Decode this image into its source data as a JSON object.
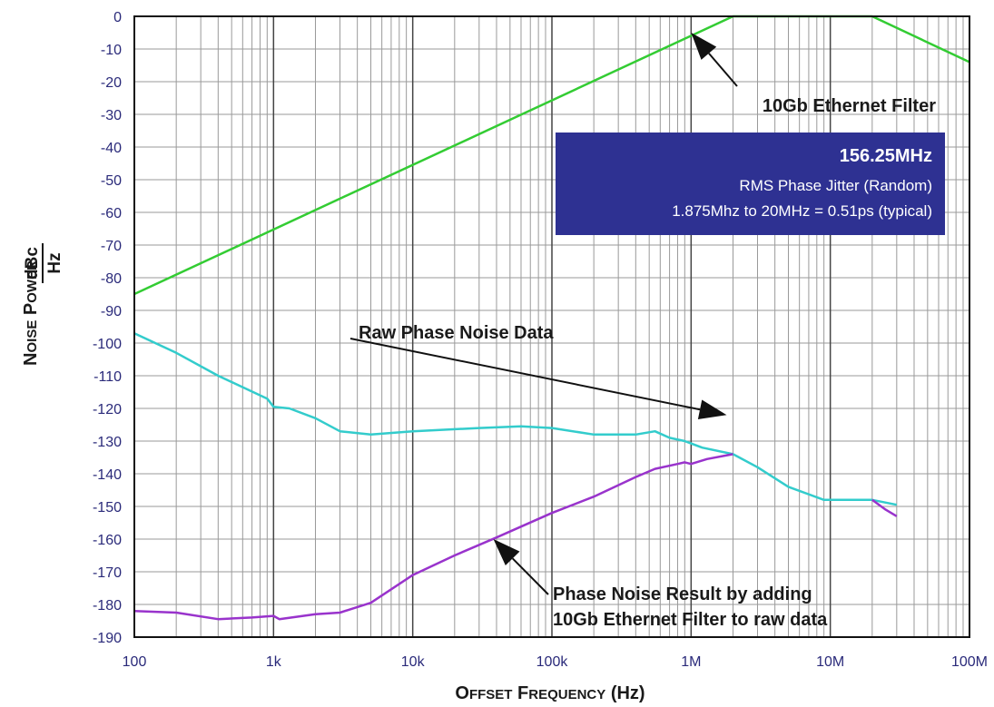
{
  "chart_data": {
    "type": "line",
    "xscale": "log",
    "xlim": [
      100,
      100000000
    ],
    "ylim": [
      -190,
      0
    ],
    "grid": true,
    "xlabel": {
      "parts": [
        {
          "text": "O",
          "big": true
        },
        {
          "text": "FFSET",
          "big": false
        },
        {
          "text": " ",
          "big": true
        },
        {
          "text": "F",
          "big": true
        },
        {
          "text": "REQUENCY",
          "big": false
        },
        {
          "text": " (Hz)",
          "big": true
        }
      ]
    },
    "ylabel": {
      "parts": [
        {
          "text": "N",
          "big": true
        },
        {
          "text": "OISE",
          "big": false
        },
        {
          "text": " ",
          "big": true
        },
        {
          "text": "P",
          "big": true
        },
        {
          "text": "OWER",
          "big": false
        }
      ],
      "fraction_top": "dBc",
      "fraction_bottom": "Hz"
    },
    "xticks": [
      {
        "value": 100,
        "label": "100"
      },
      {
        "value": 1000,
        "label": "1k"
      },
      {
        "value": 10000,
        "label": "10k"
      },
      {
        "value": 100000,
        "label": "100k"
      },
      {
        "value": 1000000,
        "label": "1M"
      },
      {
        "value": 10000000,
        "label": "10M"
      },
      {
        "value": 100000000,
        "label": "100M"
      }
    ],
    "yticks": [
      0,
      -10,
      -20,
      -30,
      -40,
      -50,
      -60,
      -70,
      -80,
      -90,
      -100,
      -110,
      -120,
      -130,
      -140,
      -150,
      -160,
      -170,
      -180,
      -190
    ],
    "series": [
      {
        "color": "#33cc33",
        "points": [
          [
            100,
            -85
          ],
          [
            2000000,
            0
          ],
          [
            20000000,
            0
          ],
          [
            100000000,
            -14
          ]
        ]
      },
      {
        "color": "#33cccc",
        "points": [
          [
            100,
            -97
          ],
          [
            200,
            -103
          ],
          [
            400,
            -110
          ],
          [
            900,
            -117
          ],
          [
            1000,
            -119.5
          ],
          [
            1300,
            -120
          ],
          [
            2000,
            -123
          ],
          [
            3000,
            -127
          ],
          [
            5000,
            -128
          ],
          [
            10000,
            -127
          ],
          [
            30000,
            -126
          ],
          [
            60000,
            -125.5
          ],
          [
            100000,
            -126
          ],
          [
            200000,
            -128
          ],
          [
            400000,
            -128
          ],
          [
            550000,
            -127
          ],
          [
            700000,
            -129
          ],
          [
            900000,
            -130
          ],
          [
            1200000,
            -132
          ],
          [
            2000000,
            -134
          ],
          [
            3000000,
            -138
          ],
          [
            5000000,
            -144
          ],
          [
            9000000,
            -148
          ],
          [
            20000000,
            -148
          ],
          [
            30000000,
            -149.5
          ]
        ]
      },
      {
        "color": "#9933cc",
        "points": [
          [
            100,
            -182
          ],
          [
            200,
            -182.5
          ],
          [
            400,
            -184.5
          ],
          [
            700,
            -184
          ],
          [
            1000,
            -183.5
          ],
          [
            1100,
            -184.5
          ],
          [
            2000,
            -183
          ],
          [
            3000,
            -182.5
          ],
          [
            5000,
            -179.5
          ],
          [
            10000,
            -171
          ],
          [
            20000,
            -165
          ],
          [
            40000,
            -159.5
          ],
          [
            100000,
            -152
          ],
          [
            200000,
            -147
          ],
          [
            400000,
            -141
          ],
          [
            550000,
            -138.5
          ],
          [
            800000,
            -137
          ],
          [
            900000,
            -136.5
          ],
          [
            1000000,
            -137
          ],
          [
            1300000,
            -135.5
          ],
          [
            2000000,
            -134
          ]
        ]
      },
      {
        "color": "#9933cc",
        "points": [
          [
            20000000,
            -148
          ],
          [
            25000000,
            -151
          ],
          [
            30000000,
            -153
          ]
        ]
      }
    ],
    "annotations": [
      {
        "text": "10Gb Ethernet Filter",
        "arrow_to": [
          1000000,
          -5
        ]
      },
      {
        "text": "Raw Phase Noise Data",
        "arrow_to": [
          1800000,
          -122
        ]
      },
      {
        "text": "Phase Noise Result by adding",
        "text2": "10Gb Ethernet Filter to raw data",
        "arrow_to": [
          38000,
          -160
        ]
      }
    ],
    "info_box": {
      "title": "156.25MHz",
      "line1": "RMS Phase Jitter  (Random)",
      "line2": "1.875Mhz to 20MHz = 0.51ps (typical)",
      "background": "#2e3192"
    }
  }
}
